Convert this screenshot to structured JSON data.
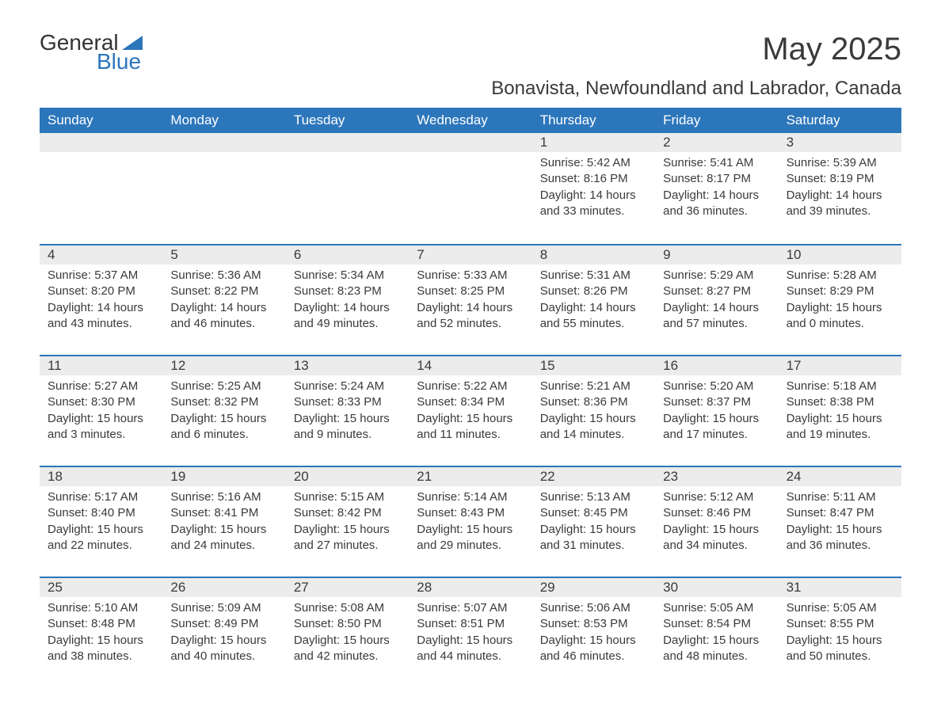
{
  "logo": {
    "text_top": "General",
    "text_bottom": "Blue",
    "triangle_color": "#2c76bb"
  },
  "title": "May 2025",
  "subtitle": "Bonavista, Newfoundland and Labrador, Canada",
  "colors": {
    "header_bg": "#2c76bb",
    "header_text": "#ffffff",
    "daynum_bg": "#ececec",
    "text": "#3a3a3a",
    "week_border": "#2c76bb",
    "page_bg": "#ffffff"
  },
  "typography": {
    "title_fontsize": 40,
    "subtitle_fontsize": 24,
    "dow_fontsize": 17,
    "daynum_fontsize": 17,
    "body_fontsize": 15
  },
  "days_of_week": [
    "Sunday",
    "Monday",
    "Tuesday",
    "Wednesday",
    "Thursday",
    "Friday",
    "Saturday"
  ],
  "weeks": [
    [
      {
        "n": "",
        "empty": true
      },
      {
        "n": "",
        "empty": true
      },
      {
        "n": "",
        "empty": true
      },
      {
        "n": "",
        "empty": true
      },
      {
        "n": "1",
        "sunrise": "Sunrise: 5:42 AM",
        "sunset": "Sunset: 8:16 PM",
        "day1": "Daylight: 14 hours",
        "day2": "and 33 minutes."
      },
      {
        "n": "2",
        "sunrise": "Sunrise: 5:41 AM",
        "sunset": "Sunset: 8:17 PM",
        "day1": "Daylight: 14 hours",
        "day2": "and 36 minutes."
      },
      {
        "n": "3",
        "sunrise": "Sunrise: 5:39 AM",
        "sunset": "Sunset: 8:19 PM",
        "day1": "Daylight: 14 hours",
        "day2": "and 39 minutes."
      }
    ],
    [
      {
        "n": "4",
        "sunrise": "Sunrise: 5:37 AM",
        "sunset": "Sunset: 8:20 PM",
        "day1": "Daylight: 14 hours",
        "day2": "and 43 minutes."
      },
      {
        "n": "5",
        "sunrise": "Sunrise: 5:36 AM",
        "sunset": "Sunset: 8:22 PM",
        "day1": "Daylight: 14 hours",
        "day2": "and 46 minutes."
      },
      {
        "n": "6",
        "sunrise": "Sunrise: 5:34 AM",
        "sunset": "Sunset: 8:23 PM",
        "day1": "Daylight: 14 hours",
        "day2": "and 49 minutes."
      },
      {
        "n": "7",
        "sunrise": "Sunrise: 5:33 AM",
        "sunset": "Sunset: 8:25 PM",
        "day1": "Daylight: 14 hours",
        "day2": "and 52 minutes."
      },
      {
        "n": "8",
        "sunrise": "Sunrise: 5:31 AM",
        "sunset": "Sunset: 8:26 PM",
        "day1": "Daylight: 14 hours",
        "day2": "and 55 minutes."
      },
      {
        "n": "9",
        "sunrise": "Sunrise: 5:29 AM",
        "sunset": "Sunset: 8:27 PM",
        "day1": "Daylight: 14 hours",
        "day2": "and 57 minutes."
      },
      {
        "n": "10",
        "sunrise": "Sunrise: 5:28 AM",
        "sunset": "Sunset: 8:29 PM",
        "day1": "Daylight: 15 hours",
        "day2": "and 0 minutes."
      }
    ],
    [
      {
        "n": "11",
        "sunrise": "Sunrise: 5:27 AM",
        "sunset": "Sunset: 8:30 PM",
        "day1": "Daylight: 15 hours",
        "day2": "and 3 minutes."
      },
      {
        "n": "12",
        "sunrise": "Sunrise: 5:25 AM",
        "sunset": "Sunset: 8:32 PM",
        "day1": "Daylight: 15 hours",
        "day2": "and 6 minutes."
      },
      {
        "n": "13",
        "sunrise": "Sunrise: 5:24 AM",
        "sunset": "Sunset: 8:33 PM",
        "day1": "Daylight: 15 hours",
        "day2": "and 9 minutes."
      },
      {
        "n": "14",
        "sunrise": "Sunrise: 5:22 AM",
        "sunset": "Sunset: 8:34 PM",
        "day1": "Daylight: 15 hours",
        "day2": "and 11 minutes."
      },
      {
        "n": "15",
        "sunrise": "Sunrise: 5:21 AM",
        "sunset": "Sunset: 8:36 PM",
        "day1": "Daylight: 15 hours",
        "day2": "and 14 minutes."
      },
      {
        "n": "16",
        "sunrise": "Sunrise: 5:20 AM",
        "sunset": "Sunset: 8:37 PM",
        "day1": "Daylight: 15 hours",
        "day2": "and 17 minutes."
      },
      {
        "n": "17",
        "sunrise": "Sunrise: 5:18 AM",
        "sunset": "Sunset: 8:38 PM",
        "day1": "Daylight: 15 hours",
        "day2": "and 19 minutes."
      }
    ],
    [
      {
        "n": "18",
        "sunrise": "Sunrise: 5:17 AM",
        "sunset": "Sunset: 8:40 PM",
        "day1": "Daylight: 15 hours",
        "day2": "and 22 minutes."
      },
      {
        "n": "19",
        "sunrise": "Sunrise: 5:16 AM",
        "sunset": "Sunset: 8:41 PM",
        "day1": "Daylight: 15 hours",
        "day2": "and 24 minutes."
      },
      {
        "n": "20",
        "sunrise": "Sunrise: 5:15 AM",
        "sunset": "Sunset: 8:42 PM",
        "day1": "Daylight: 15 hours",
        "day2": "and 27 minutes."
      },
      {
        "n": "21",
        "sunrise": "Sunrise: 5:14 AM",
        "sunset": "Sunset: 8:43 PM",
        "day1": "Daylight: 15 hours",
        "day2": "and 29 minutes."
      },
      {
        "n": "22",
        "sunrise": "Sunrise: 5:13 AM",
        "sunset": "Sunset: 8:45 PM",
        "day1": "Daylight: 15 hours",
        "day2": "and 31 minutes."
      },
      {
        "n": "23",
        "sunrise": "Sunrise: 5:12 AM",
        "sunset": "Sunset: 8:46 PM",
        "day1": "Daylight: 15 hours",
        "day2": "and 34 minutes."
      },
      {
        "n": "24",
        "sunrise": "Sunrise: 5:11 AM",
        "sunset": "Sunset: 8:47 PM",
        "day1": "Daylight: 15 hours",
        "day2": "and 36 minutes."
      }
    ],
    [
      {
        "n": "25",
        "sunrise": "Sunrise: 5:10 AM",
        "sunset": "Sunset: 8:48 PM",
        "day1": "Daylight: 15 hours",
        "day2": "and 38 minutes."
      },
      {
        "n": "26",
        "sunrise": "Sunrise: 5:09 AM",
        "sunset": "Sunset: 8:49 PM",
        "day1": "Daylight: 15 hours",
        "day2": "and 40 minutes."
      },
      {
        "n": "27",
        "sunrise": "Sunrise: 5:08 AM",
        "sunset": "Sunset: 8:50 PM",
        "day1": "Daylight: 15 hours",
        "day2": "and 42 minutes."
      },
      {
        "n": "28",
        "sunrise": "Sunrise: 5:07 AM",
        "sunset": "Sunset: 8:51 PM",
        "day1": "Daylight: 15 hours",
        "day2": "and 44 minutes."
      },
      {
        "n": "29",
        "sunrise": "Sunrise: 5:06 AM",
        "sunset": "Sunset: 8:53 PM",
        "day1": "Daylight: 15 hours",
        "day2": "and 46 minutes."
      },
      {
        "n": "30",
        "sunrise": "Sunrise: 5:05 AM",
        "sunset": "Sunset: 8:54 PM",
        "day1": "Daylight: 15 hours",
        "day2": "and 48 minutes."
      },
      {
        "n": "31",
        "sunrise": "Sunrise: 5:05 AM",
        "sunset": "Sunset: 8:55 PM",
        "day1": "Daylight: 15 hours",
        "day2": "and 50 minutes."
      }
    ]
  ]
}
